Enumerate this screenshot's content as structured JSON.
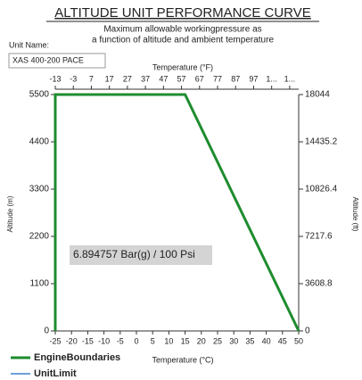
{
  "chart_data": {
    "type": "line",
    "title": "ALTITUDE UNIT PERFORMANCE CURVE",
    "subtitle": [
      "Maximum allowable workingpressure as",
      "a function of altitude and ambient temperature"
    ],
    "unit_name_label": "Unit Name:",
    "unit_name": "XAS 400-200 PACE",
    "annotation": "6.894757 Bar(g) / 100 Psi",
    "xlabel": "Temperature (°C)",
    "x2label": "Temperature (°F)",
    "ylabel": "Altitude (m)",
    "y2label": "Altitude (ft)",
    "x": [
      -25,
      -25,
      15,
      50
    ],
    "series": [
      {
        "name": "EngineBoundaries",
        "color": "#1e8c2e",
        "values": [
          0,
          5500,
          5500,
          0
        ]
      },
      {
        "name": "UnitLimit",
        "color": "#3d7fd1",
        "values": [
          0,
          5500,
          5500,
          0
        ]
      }
    ],
    "xlim": [
      -25,
      50
    ],
    "xticks": [
      -25,
      -20,
      -15,
      -10,
      -5,
      0,
      5,
      10,
      15,
      20,
      25,
      30,
      35,
      40,
      45,
      50
    ],
    "x2lim": [
      -13,
      122
    ],
    "x2ticks": [
      -13,
      -3,
      7,
      17,
      27,
      37,
      47,
      57,
      67,
      77,
      87,
      97,
      {
        "value": 107,
        "label": "1..."
      },
      {
        "value": 117,
        "label": "1..."
      }
    ],
    "ylim": [
      0,
      5500
    ],
    "yticks": [
      0,
      1100,
      2200,
      3300,
      4400,
      5500
    ],
    "y2lim": [
      0,
      18044
    ],
    "y2ticks": [
      0,
      3608.8,
      7217.6,
      10826.4,
      14435.2,
      18044
    ],
    "grid": false,
    "legend": "bottom-left"
  }
}
